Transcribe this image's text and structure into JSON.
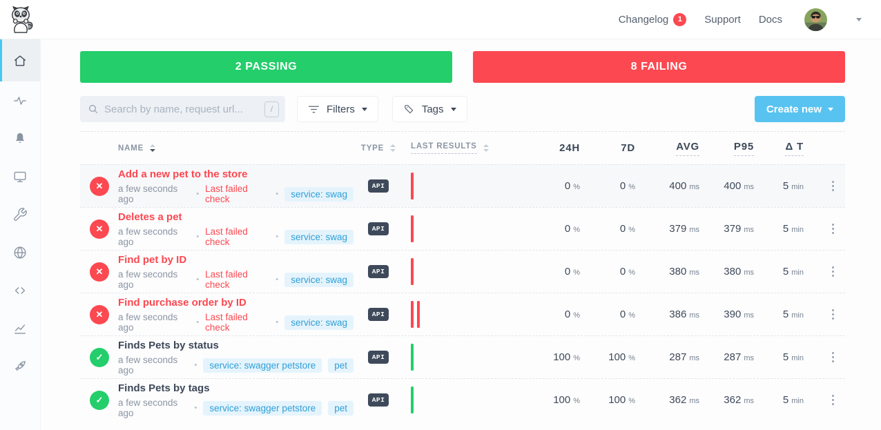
{
  "topbar": {
    "nav": [
      {
        "label": "Changelog",
        "badge": "1"
      },
      {
        "label": "Support"
      },
      {
        "label": "Docs"
      }
    ]
  },
  "sidebar": {
    "items": [
      {
        "icon": "home",
        "active": true
      },
      {
        "icon": "activity"
      },
      {
        "icon": "bell"
      },
      {
        "icon": "monitor"
      },
      {
        "icon": "wrench"
      },
      {
        "icon": "globe"
      },
      {
        "icon": "code"
      },
      {
        "icon": "chart"
      },
      {
        "icon": "rocket"
      }
    ]
  },
  "summary": {
    "passing_label": "2 PASSING",
    "failing_label": "8 FAILING",
    "passing_color": "#23ce6b",
    "failing_color": "#fc4850"
  },
  "toolbar": {
    "search_placeholder": "Search by name, request url...",
    "search_value": "",
    "search_shortcut": "/",
    "filters_label": "Filters",
    "tags_label": "Tags",
    "create_new_label": "Create new",
    "create_new_color": "#58c3f0"
  },
  "table": {
    "headers": {
      "name": "NAME",
      "type": "TYPE",
      "last_results": "LAST RESULTS",
      "h24": "24H",
      "d7": "7D",
      "avg": "AVG",
      "p95": "P95",
      "delta_t": "Δ T"
    },
    "rows": [
      {
        "status": "failing",
        "highlighted": true,
        "name": "Add a new pet to the store",
        "time": "a few seconds ago",
        "note": "Last failed check",
        "tags": [
          "service: swag"
        ],
        "type": "API",
        "bars": [
          "fail"
        ],
        "h24": {
          "v": "0",
          "u": "%"
        },
        "d7": {
          "v": "0",
          "u": "%"
        },
        "avg": {
          "v": "400",
          "u": "ms"
        },
        "p95": {
          "v": "400",
          "u": "ms"
        },
        "dt": {
          "v": "5",
          "u": "min"
        }
      },
      {
        "status": "failing",
        "name": "Deletes a pet",
        "time": "a few seconds ago",
        "note": "Last failed check",
        "tags": [
          "service: swag"
        ],
        "type": "API",
        "bars": [
          "fail"
        ],
        "h24": {
          "v": "0",
          "u": "%"
        },
        "d7": {
          "v": "0",
          "u": "%"
        },
        "avg": {
          "v": "379",
          "u": "ms"
        },
        "p95": {
          "v": "379",
          "u": "ms"
        },
        "dt": {
          "v": "5",
          "u": "min"
        }
      },
      {
        "status": "failing",
        "name": "Find pet by ID",
        "time": "a few seconds ago",
        "note": "Last failed check",
        "tags": [
          "service: swag"
        ],
        "type": "API",
        "bars": [
          "fail"
        ],
        "h24": {
          "v": "0",
          "u": "%"
        },
        "d7": {
          "v": "0",
          "u": "%"
        },
        "avg": {
          "v": "380",
          "u": "ms"
        },
        "p95": {
          "v": "380",
          "u": "ms"
        },
        "dt": {
          "v": "5",
          "u": "min"
        }
      },
      {
        "status": "failing",
        "name": "Find purchase order by ID",
        "time": "a few seconds ago",
        "note": "Last failed check",
        "tags": [
          "service: swag"
        ],
        "type": "API",
        "bars": [
          "fail",
          "fail"
        ],
        "h24": {
          "v": "0",
          "u": "%"
        },
        "d7": {
          "v": "0",
          "u": "%"
        },
        "avg": {
          "v": "386",
          "u": "ms"
        },
        "p95": {
          "v": "390",
          "u": "ms"
        },
        "dt": {
          "v": "5",
          "u": "min"
        }
      },
      {
        "status": "passing",
        "name": "Finds Pets by status",
        "time": "a few seconds ago",
        "note": null,
        "tags": [
          "service: swagger petstore",
          "pet"
        ],
        "type": "API",
        "bars": [
          "pass"
        ],
        "h24": {
          "v": "100",
          "u": "%"
        },
        "d7": {
          "v": "100",
          "u": "%"
        },
        "avg": {
          "v": "287",
          "u": "ms"
        },
        "p95": {
          "v": "287",
          "u": "ms"
        },
        "dt": {
          "v": "5",
          "u": "min"
        }
      },
      {
        "status": "passing",
        "name": "Finds Pets by tags",
        "time": "a few seconds ago",
        "note": null,
        "tags": [
          "service: swagger petstore",
          "pet"
        ],
        "type": "API",
        "bars": [
          "pass"
        ],
        "h24": {
          "v": "100",
          "u": "%"
        },
        "d7": {
          "v": "100",
          "u": "%"
        },
        "avg": {
          "v": "362",
          "u": "ms"
        },
        "p95": {
          "v": "362",
          "u": "ms"
        },
        "dt": {
          "v": "5",
          "u": "min"
        }
      }
    ]
  }
}
